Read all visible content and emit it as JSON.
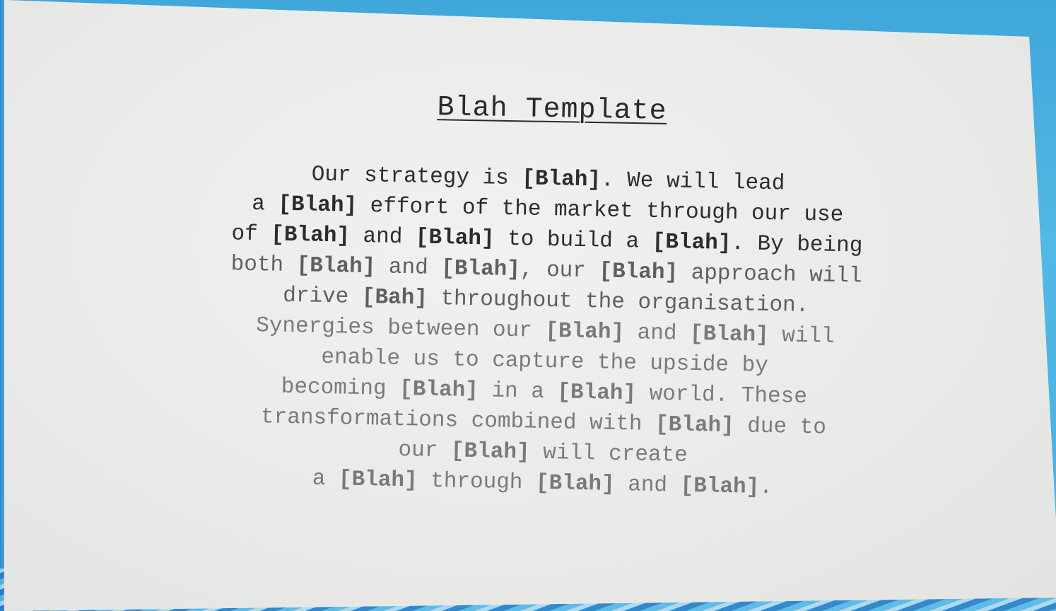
{
  "slide": {
    "title": "Blah Template",
    "lines": [
      {
        "tone": "dark",
        "parts": [
          {
            "t": "Our strategy is ",
            "b": false
          },
          {
            "t": "[Blah]",
            "b": true
          },
          {
            "t": ". We will lead",
            "b": false
          }
        ]
      },
      {
        "tone": "dark",
        "parts": [
          {
            "t": "a ",
            "b": false
          },
          {
            "t": "[Blah]",
            "b": true
          },
          {
            "t": " effort of the market through our use",
            "b": false
          }
        ]
      },
      {
        "tone": "dark",
        "parts": [
          {
            "t": "of ",
            "b": false
          },
          {
            "t": "[Blah]",
            "b": true
          },
          {
            "t": " and ",
            "b": false
          },
          {
            "t": "[Blah]",
            "b": true
          },
          {
            "t": " to build a ",
            "b": false
          },
          {
            "t": "[Blah]",
            "b": true
          },
          {
            "t": ". By being",
            "b": false
          }
        ]
      },
      {
        "tone": "mid",
        "parts": [
          {
            "t": "both ",
            "b": false
          },
          {
            "t": "[Blah]",
            "b": true
          },
          {
            "t": " and ",
            "b": false
          },
          {
            "t": "[Blah]",
            "b": true
          },
          {
            "t": ", our ",
            "b": false
          },
          {
            "t": "[Blah]",
            "b": true
          },
          {
            "t": " approach will",
            "b": false
          }
        ]
      },
      {
        "tone": "mid",
        "parts": [
          {
            "t": "drive ",
            "b": false
          },
          {
            "t": "[Bah]",
            "b": true
          },
          {
            "t": " throughout the organisation.",
            "b": false
          }
        ]
      },
      {
        "tone": "light",
        "parts": [
          {
            "t": "Synergies between our ",
            "b": false
          },
          {
            "t": "[Blah]",
            "b": true
          },
          {
            "t": " and ",
            "b": false
          },
          {
            "t": "[Blah]",
            "b": true
          },
          {
            "t": " will",
            "b": false
          }
        ]
      },
      {
        "tone": "light",
        "parts": [
          {
            "t": "enable us to capture the upside by",
            "b": false
          }
        ]
      },
      {
        "tone": "light",
        "parts": [
          {
            "t": "becoming ",
            "b": false
          },
          {
            "t": "[Blah]",
            "b": true
          },
          {
            "t": " in a ",
            "b": false
          },
          {
            "t": "[Blah]",
            "b": true
          },
          {
            "t": " world. These",
            "b": false
          }
        ]
      },
      {
        "tone": "light",
        "parts": [
          {
            "t": "transformations combined with ",
            "b": false
          },
          {
            "t": "[Blah]",
            "b": true
          },
          {
            "t": " due to",
            "b": false
          }
        ]
      },
      {
        "tone": "light",
        "parts": [
          {
            "t": "our ",
            "b": false
          },
          {
            "t": "[Blah]",
            "b": true
          },
          {
            "t": " will create",
            "b": false
          }
        ]
      },
      {
        "tone": "light",
        "parts": [
          {
            "t": "a ",
            "b": false
          },
          {
            "t": "[Blah]",
            "b": true
          },
          {
            "t": " through ",
            "b": false
          },
          {
            "t": "[Blah]",
            "b": true
          },
          {
            "t": " and ",
            "b": false
          },
          {
            "t": "[Blah]",
            "b": true
          },
          {
            "t": ".",
            "b": false
          }
        ]
      }
    ]
  }
}
